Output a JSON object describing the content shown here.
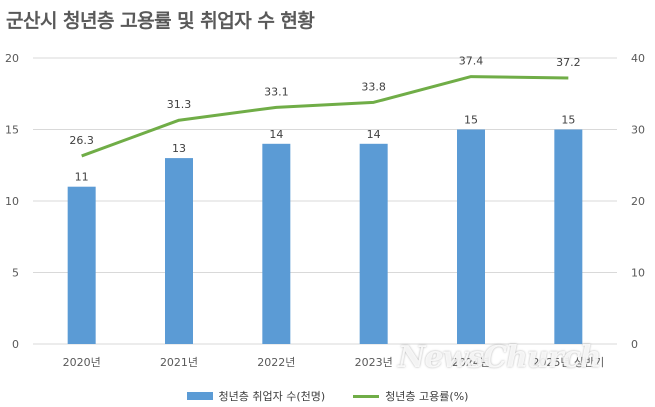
{
  "title": "군산시 청년층 고용률 및 취업자 수 현황",
  "colors": {
    "bar": "#5B9BD5",
    "line": "#70AD47",
    "grid": "#D9D9D9",
    "text": "#595959"
  },
  "legend": {
    "bar_label": "청년층 취업자 수(천명)",
    "line_label": "청년층 고용률(%)"
  },
  "watermark": "NewsChurch",
  "chart_data": {
    "type": "bar",
    "categories": [
      "2020년",
      "2021년",
      "2022년",
      "2023년",
      "2024년",
      "2025년 상반기"
    ],
    "series": [
      {
        "name": "청년층 취업자 수(천명)",
        "type": "bar",
        "axis": "left",
        "values": [
          11,
          13,
          14,
          14,
          15,
          15
        ]
      },
      {
        "name": "청년층 고용률(%)",
        "type": "line",
        "axis": "right",
        "values": [
          26.3,
          31.3,
          33.1,
          33.8,
          37.4,
          37.2
        ]
      }
    ],
    "y_left": {
      "ylim": [
        0,
        20
      ],
      "ticks": [
        0,
        5,
        10,
        15,
        20
      ]
    },
    "y_right": {
      "ylim": [
        0,
        40
      ],
      "ticks": [
        0,
        10,
        20,
        30,
        40
      ]
    },
    "grid": true,
    "legend_position": "bottom"
  }
}
